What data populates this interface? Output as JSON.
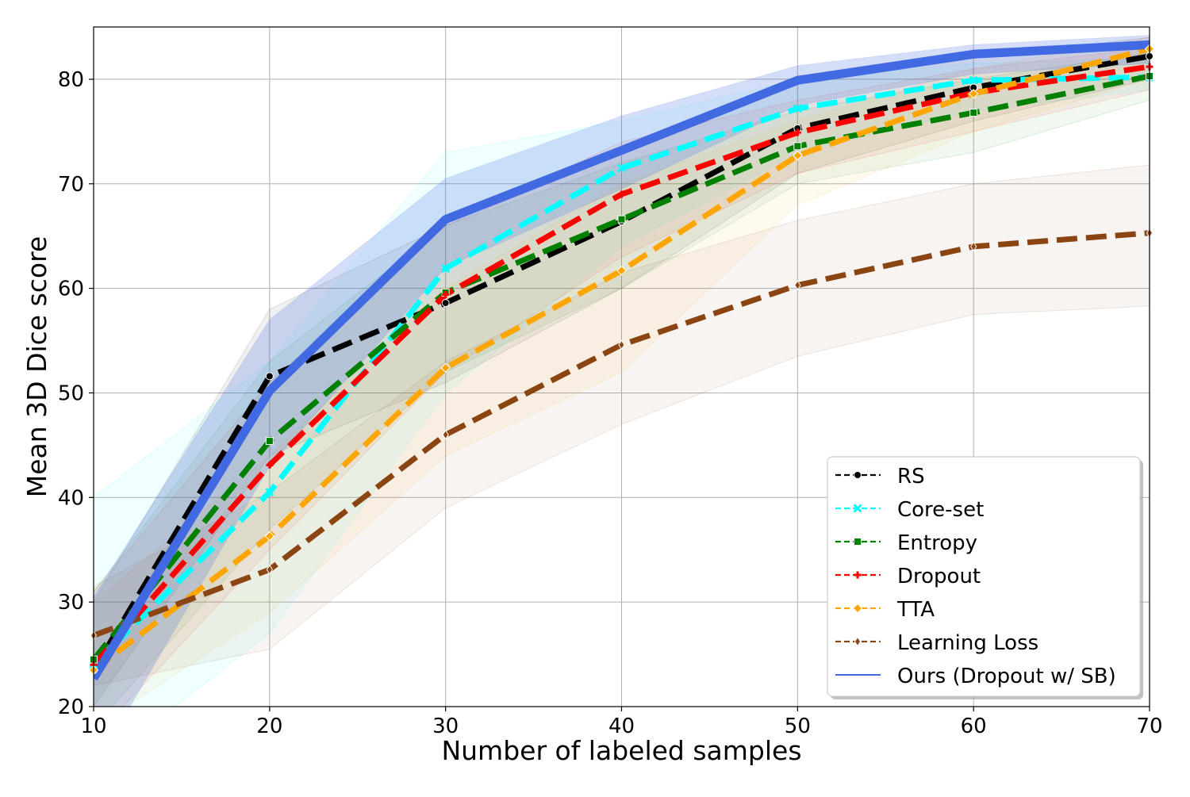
{
  "chart_data": {
    "type": "line",
    "title": "",
    "xlabel": "Number of labeled samples",
    "ylabel": "Mean 3D Dice score",
    "xlim": [
      10,
      70
    ],
    "ylim": [
      20,
      85
    ],
    "xticks": [
      10,
      20,
      30,
      40,
      50,
      60,
      70
    ],
    "yticks": [
      20,
      30,
      40,
      50,
      60,
      70,
      80
    ],
    "grid": true,
    "legend_position": "bottom-right",
    "x": [
      10,
      20,
      30,
      40,
      50,
      60,
      70
    ],
    "series": [
      {
        "name": "RS",
        "color": "#000000",
        "style": "dashed",
        "marker": "circle",
        "values": [
          23.5,
          51.6,
          58.6,
          66.4,
          75.3,
          79.2,
          82.2
        ],
        "band_lower": [
          20.0,
          44.0,
          51.0,
          60.0,
          71.0,
          76.0,
          80.0
        ],
        "band_upper": [
          30.0,
          58.0,
          66.0,
          73.0,
          79.5,
          82.0,
          84.0
        ]
      },
      {
        "name": "Core-set",
        "color": "#00ffff",
        "style": "dashed",
        "marker": "x",
        "values": [
          24.0,
          40.5,
          61.9,
          71.5,
          77.2,
          79.9,
          80.2
        ],
        "band_lower": [
          14.0,
          27.0,
          50.0,
          64.0,
          73.0,
          77.0,
          79.0
        ],
        "band_upper": [
          40.0,
          53.0,
          73.0,
          76.0,
          80.0,
          81.5,
          82.0
        ]
      },
      {
        "name": "Entropy",
        "color": "#008000",
        "style": "dashed",
        "marker": "square",
        "values": [
          24.5,
          45.4,
          59.6,
          66.6,
          73.6,
          76.8,
          80.3
        ],
        "band_lower": [
          18.0,
          37.0,
          52.0,
          60.0,
          70.0,
          73.0,
          78.0
        ],
        "band_upper": [
          31.0,
          53.0,
          66.0,
          72.0,
          77.0,
          80.0,
          82.5
        ]
      },
      {
        "name": "Dropout",
        "color": "#ff0000",
        "style": "dashed",
        "marker": "plus",
        "values": [
          24.0,
          43.1,
          59.4,
          69.0,
          74.9,
          78.7,
          81.2
        ],
        "band_lower": [
          17.0,
          35.0,
          52.0,
          63.0,
          71.0,
          75.0,
          79.0
        ],
        "band_upper": [
          31.0,
          51.0,
          66.0,
          74.0,
          78.0,
          81.0,
          83.0
        ]
      },
      {
        "name": "TTA",
        "color": "#ffa500",
        "style": "dashed",
        "marker": "diamond",
        "values": [
          23.5,
          36.3,
          52.4,
          61.7,
          72.7,
          78.6,
          82.9
        ],
        "band_lower": [
          18.0,
          29.0,
          44.0,
          52.0,
          68.0,
          75.0,
          80.0
        ],
        "band_upper": [
          30.0,
          44.0,
          60.0,
          70.0,
          76.0,
          81.0,
          84.0
        ]
      },
      {
        "name": "Learning Loss",
        "color": "#8b4513",
        "style": "dashed",
        "marker": "thin-diamond",
        "values": [
          26.8,
          33.1,
          46.0,
          54.6,
          60.3,
          64.0,
          65.3
        ],
        "band_lower": [
          22.0,
          25.5,
          39.0,
          47.0,
          53.5,
          57.5,
          58.3
        ],
        "band_upper": [
          31.5,
          40.5,
          53.0,
          61.5,
          66.5,
          70.0,
          71.8
        ]
      },
      {
        "name": "Ours (Dropout w/ SB)",
        "color": "#4169e1",
        "style": "solid",
        "marker": "none",
        "values": [
          22.7,
          50.2,
          66.6,
          73.2,
          79.9,
          82.4,
          83.3
        ],
        "band_lower": [
          14.0,
          43.0,
          62.0,
          69.5,
          77.5,
          80.5,
          81.5
        ],
        "band_upper": [
          30.5,
          57.0,
          70.5,
          76.5,
          81.3,
          83.3,
          84.2
        ]
      }
    ]
  }
}
